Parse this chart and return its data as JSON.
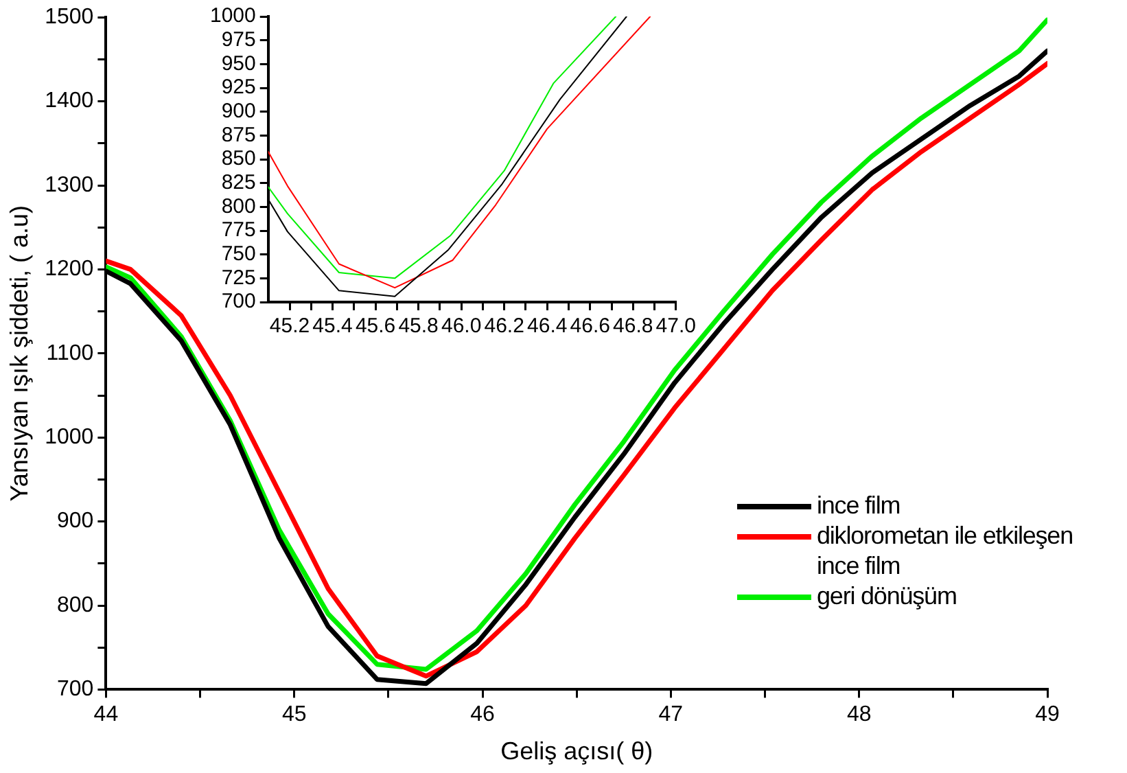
{
  "chart_data": [
    {
      "type": "line",
      "xlabel": "Geliş açısı( θ)",
      "ylabel": "Yansıyan ışık şiddeti, ( a.u)",
      "marker": "none",
      "legend": "bottom right",
      "xlim": [
        44,
        49
      ],
      "xticks": [
        44,
        {
          "value": 44.5,
          "label": null
        },
        45,
        {
          "value": 45.5,
          "label": null
        },
        46,
        {
          "value": 46.5,
          "label": null
        },
        47,
        {
          "value": 47.5,
          "label": null
        },
        48,
        {
          "value": 48.5,
          "label": null
        },
        49
      ],
      "ylim": [
        700,
        1500
      ],
      "yticks": [
        700,
        {
          "value": 750,
          "label": null
        },
        800,
        {
          "value": 850,
          "label": null
        },
        900,
        {
          "value": 950,
          "label": null
        },
        1000,
        {
          "value": 1050,
          "label": null
        },
        1100,
        {
          "value": 1150,
          "label": null
        },
        1200,
        {
          "value": 1250,
          "label": null
        },
        1300,
        {
          "value": 1350,
          "label": null
        },
        1400,
        {
          "value": 1450,
          "label": null
        },
        1500
      ],
      "x": [
        44,
        44.13,
        44.4,
        44.66,
        44.92,
        45.18,
        45.44,
        45.7,
        45.97,
        46.23,
        46.49,
        46.75,
        47.02,
        47.28,
        47.54,
        47.8,
        48.07,
        48.33,
        48.59,
        48.85,
        49
      ],
      "series": [
        {
          "name": "ince film",
          "color": "#000000",
          "values": [
            1198,
            1183,
            1115,
            1015,
            880,
            775,
            712,
            707,
            755,
            825,
            905,
            980,
            1065,
            1135,
            1200,
            1262,
            1315,
            1355,
            1395,
            1430,
            1460
          ]
        },
        {
          "name": "diklorometan ile etkileşen ince film",
          "color": "#ff0000",
          "values": [
            1210,
            1200,
            1145,
            1050,
            935,
            820,
            740,
            716,
            745,
            800,
            880,
            955,
            1035,
            1105,
            1175,
            1235,
            1295,
            1340,
            1380,
            1420,
            1445
          ]
        },
        {
          "name": "geri dönüşüm",
          "color": "#00ee00",
          "values": [
            1203,
            1190,
            1120,
            1020,
            890,
            790,
            730,
            724,
            770,
            838,
            920,
            995,
            1080,
            1150,
            1218,
            1280,
            1335,
            1380,
            1420,
            1460,
            1497
          ]
        }
      ]
    },
    {
      "type": "line",
      "marker": "none",
      "xlim": [
        45.1,
        47.0
      ],
      "xticks": [
        45.2,
        {
          "value": 45.3,
          "label": null
        },
        45.4,
        {
          "value": 45.5,
          "label": null
        },
        45.6,
        {
          "value": 45.7,
          "label": null
        },
        45.8,
        {
          "value": 45.9,
          "label": null
        },
        {
          "value": 46,
          "label": "46.0"
        },
        {
          "value": 46.1,
          "label": null
        },
        46.2,
        {
          "value": 46.3,
          "label": null
        },
        46.4,
        {
          "value": 46.5,
          "label": null
        },
        46.6,
        {
          "value": 46.7,
          "label": null
        },
        46.8,
        {
          "value": 46.9,
          "label": null
        },
        {
          "value": 47,
          "label": "47.0"
        }
      ],
      "ylim": [
        700,
        1000
      ],
      "yticks": [
        700,
        725,
        750,
        775,
        800,
        825,
        850,
        875,
        900,
        925,
        950,
        975,
        1000
      ],
      "series": [
        {
          "color": "#000000",
          "x": [
            45.1,
            45.19,
            45.43,
            45.69,
            45.94,
            46.19,
            46.46,
            46.77
          ],
          "values": [
            808,
            774,
            712,
            706,
            755,
            824,
            913,
            1000
          ]
        },
        {
          "color": "#ff0000",
          "x": [
            45.1,
            45.19,
            45.43,
            45.69,
            45.96,
            46.16,
            46.4,
            46.88
          ],
          "values": [
            858,
            822,
            740,
            715,
            744,
            802,
            882,
            1000
          ]
        },
        {
          "color": "#00ee00",
          "x": [
            45.1,
            45.19,
            45.43,
            45.69,
            45.95,
            46.2,
            46.43,
            46.72
          ],
          "values": [
            821,
            793,
            731,
            725,
            770,
            838,
            930,
            1000
          ]
        }
      ]
    }
  ]
}
